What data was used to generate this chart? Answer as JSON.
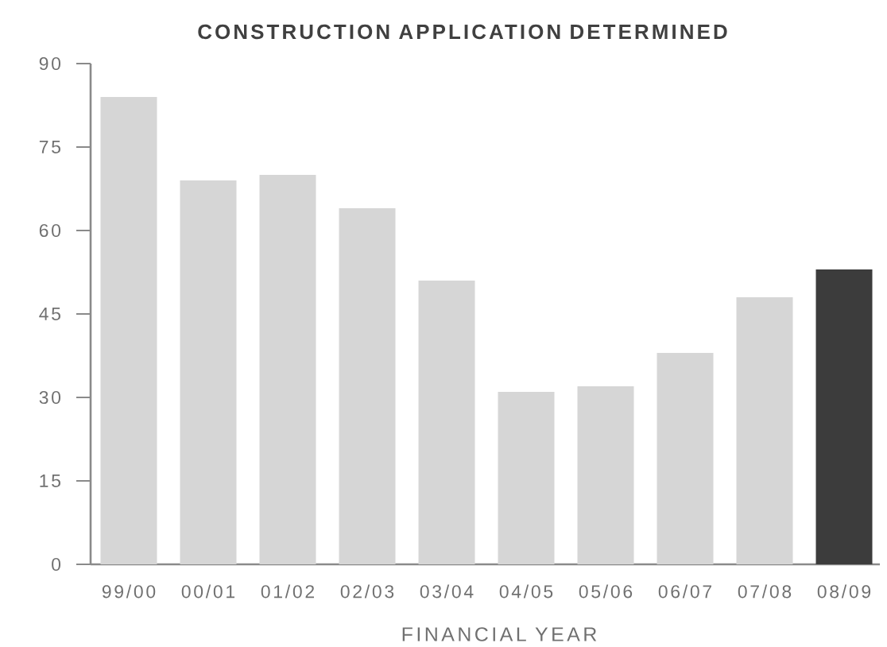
{
  "chart_data": {
    "type": "bar",
    "title": "CONSTRUCTION APPLICATION DETERMINED",
    "xlabel": "FINANCIAL YEAR",
    "categories": [
      "99/00",
      "00/01",
      "01/02",
      "02/03",
      "03/04",
      "04/05",
      "05/06",
      "06/07",
      "07/08",
      "08/09"
    ],
    "values": [
      84,
      69,
      70,
      64,
      51,
      31,
      32,
      38,
      48,
      53
    ],
    "colors": [
      "#d6d6d6",
      "#d6d6d6",
      "#d6d6d6",
      "#d6d6d6",
      "#d6d6d6",
      "#d6d6d6",
      "#d6d6d6",
      "#d6d6d6",
      "#d6d6d6",
      "#3c3c3c"
    ],
    "ylim": [
      0,
      90
    ],
    "yticks": [
      0,
      15,
      30,
      45,
      60,
      75,
      90
    ]
  }
}
